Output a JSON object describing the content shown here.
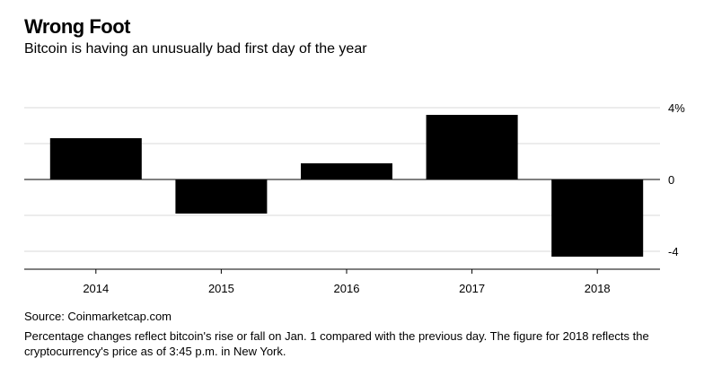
{
  "header": {
    "title": "Wrong Foot",
    "subtitle": "Bitcoin is having an unusually bad first day of the year"
  },
  "footer": {
    "source": "Source: Coinmarketcap.com",
    "note": "Percentage changes reflect bitcoin's rise or fall on Jan. 1 compared with the previous day. The figure for 2018 reflects the cryptocurrency's price as of 3:45 p.m. in New York."
  },
  "colors": {
    "bar": "#000000",
    "grid": "#d9d9d9",
    "axis": "#000000"
  },
  "chart_data": {
    "type": "bar",
    "categories": [
      "2014",
      "2015",
      "2016",
      "2017",
      "2018"
    ],
    "values": [
      2.3,
      -1.9,
      0.9,
      3.6,
      -4.3
    ],
    "ylim": [
      -4.6,
      4
    ],
    "yticks": [
      4,
      2,
      0,
      -2,
      -4
    ],
    "ytick_labels": [
      "4%",
      "",
      "0",
      "",
      "-4"
    ],
    "y_axis_position": "right",
    "grid": true,
    "legend": "none"
  }
}
